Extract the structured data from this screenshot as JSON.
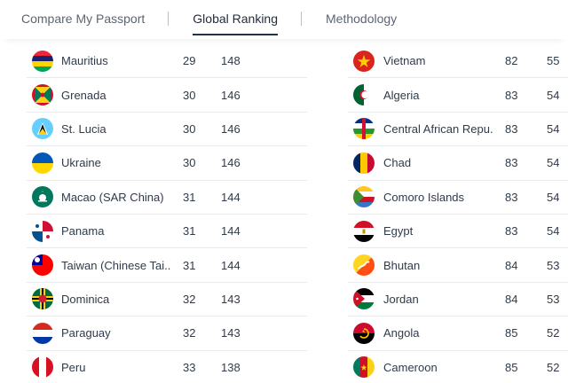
{
  "nav": {
    "tabs": [
      "Compare My Passport",
      "Global Ranking",
      "Methodology"
    ],
    "active_index": 1
  },
  "left_rows": [
    {
      "country": "Mauritius",
      "rank": "29",
      "score": "148",
      "flag": "mauritius"
    },
    {
      "country": "Grenada",
      "rank": "30",
      "score": "146",
      "flag": "grenada"
    },
    {
      "country": "St. Lucia",
      "rank": "30",
      "score": "146",
      "flag": "st-lucia"
    },
    {
      "country": "Ukraine",
      "rank": "30",
      "score": "146",
      "flag": "ukraine"
    },
    {
      "country": "Macao (SAR China)",
      "rank": "31",
      "score": "144",
      "flag": "macao"
    },
    {
      "country": "Panama",
      "rank": "31",
      "score": "144",
      "flag": "panama"
    },
    {
      "country": "Taiwan (Chinese Tai...",
      "rank": "31",
      "score": "144",
      "flag": "taiwan"
    },
    {
      "country": "Dominica",
      "rank": "32",
      "score": "143",
      "flag": "dominica"
    },
    {
      "country": "Paraguay",
      "rank": "32",
      "score": "143",
      "flag": "paraguay"
    },
    {
      "country": "Peru",
      "rank": "33",
      "score": "138",
      "flag": "peru"
    }
  ],
  "right_rows": [
    {
      "country": "Vietnam",
      "rank": "82",
      "score": "55",
      "flag": "vietnam"
    },
    {
      "country": "Algeria",
      "rank": "83",
      "score": "54",
      "flag": "algeria"
    },
    {
      "country": "Central African Repu...",
      "rank": "83",
      "score": "54",
      "flag": "central-african-republic"
    },
    {
      "country": "Chad",
      "rank": "83",
      "score": "54",
      "flag": "chad"
    },
    {
      "country": "Comoro Islands",
      "rank": "83",
      "score": "54",
      "flag": "comoros"
    },
    {
      "country": "Egypt",
      "rank": "83",
      "score": "54",
      "flag": "egypt"
    },
    {
      "country": "Bhutan",
      "rank": "84",
      "score": "53",
      "flag": "bhutan"
    },
    {
      "country": "Jordan",
      "rank": "84",
      "score": "53",
      "flag": "jordan"
    },
    {
      "country": "Angola",
      "rank": "85",
      "score": "52",
      "flag": "angola"
    },
    {
      "country": "Cameroon",
      "rank": "85",
      "score": "52",
      "flag": "cameroon"
    }
  ]
}
